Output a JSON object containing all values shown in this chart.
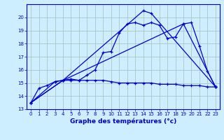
{
  "title": "",
  "xlabel": "Graphe des températures (°c)",
  "background_color": "#cceeff",
  "grid_color": "#aacccc",
  "line_color": "#0000cc",
  "xlim": [
    -0.5,
    23.5
  ],
  "ylim": [
    13,
    21
  ],
  "yticks": [
    13,
    14,
    15,
    16,
    17,
    18,
    19,
    20
  ],
  "xticks": [
    0,
    1,
    2,
    3,
    4,
    5,
    6,
    7,
    8,
    9,
    10,
    11,
    12,
    13,
    14,
    15,
    16,
    17,
    18,
    19,
    20,
    21,
    22,
    23
  ],
  "series": [
    {
      "x": [
        0,
        1,
        2,
        3,
        4,
        5,
        6,
        7,
        8,
        9,
        10,
        11,
        12,
        13,
        14,
        15,
        16,
        17,
        18,
        19,
        20,
        21,
        22,
        23
      ],
      "y": [
        13.5,
        14.6,
        14.8,
        15.1,
        15.2,
        15.2,
        15.2,
        15.2,
        15.2,
        15.2,
        15.1,
        15.0,
        15.0,
        15.0,
        15.0,
        15.0,
        14.9,
        14.9,
        14.9,
        14.8,
        14.8,
        14.8,
        14.7,
        14.7
      ]
    },
    {
      "x": [
        0,
        3,
        4,
        5,
        6,
        7,
        8,
        9,
        10,
        11,
        12,
        13,
        14,
        15,
        16,
        17,
        18,
        19,
        20,
        21,
        22,
        23
      ],
      "y": [
        13.5,
        15.1,
        15.2,
        15.3,
        15.2,
        15.6,
        16.0,
        17.3,
        17.4,
        18.8,
        19.5,
        19.6,
        19.4,
        19.6,
        19.4,
        18.4,
        18.5,
        19.5,
        19.6,
        17.8,
        15.9,
        14.7
      ]
    },
    {
      "x": [
        0,
        4,
        19,
        23
      ],
      "y": [
        13.5,
        15.2,
        19.5,
        14.7
      ]
    },
    {
      "x": [
        0,
        4,
        14,
        15,
        23
      ],
      "y": [
        13.5,
        15.2,
        20.5,
        20.3,
        14.7
      ]
    }
  ]
}
